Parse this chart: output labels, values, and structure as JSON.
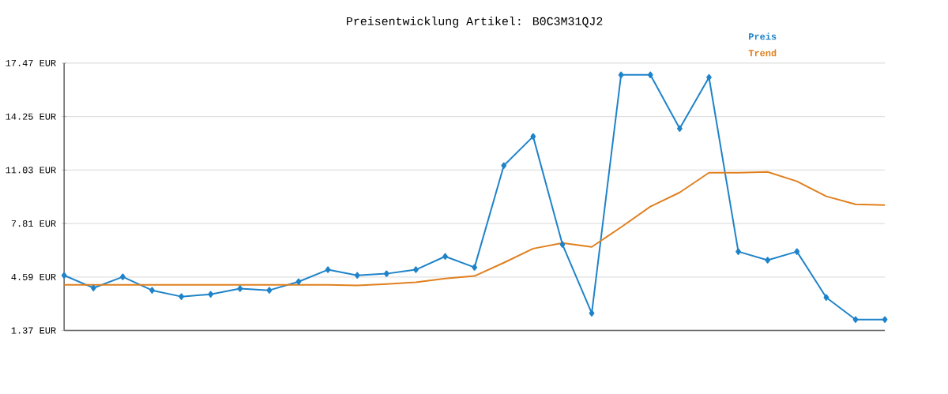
{
  "chart_data": {
    "type": "line",
    "title": "Preisentwicklung Artikel: B0C3M31QJ2",
    "categories": [
      null,
      null,
      null,
      null,
      null,
      null,
      null,
      null,
      null,
      null,
      null,
      null,
      null,
      null,
      null,
      null,
      null,
      null,
      null,
      null,
      null,
      null,
      null,
      null,
      null,
      null,
      null,
      null,
      null
    ],
    "series": [
      {
        "name": "Preis",
        "color": "#1f83c9",
        "marker": "diamond",
        "values": [
          4.69,
          3.93,
          4.6,
          3.79,
          3.41,
          3.55,
          3.89,
          3.79,
          4.31,
          5.03,
          4.69,
          4.79,
          5.03,
          5.83,
          5.17,
          11.3,
          13.05,
          6.55,
          2.41,
          16.76,
          16.76,
          13.53,
          16.61,
          6.12,
          5.6,
          6.12,
          3.36,
          2.03,
          2.03
        ]
      },
      {
        "name": "Trend",
        "color": "#e0801f",
        "marker": "none",
        "values": [
          4.12,
          4.12,
          4.12,
          4.12,
          4.12,
          4.12,
          4.12,
          4.12,
          4.12,
          4.12,
          4.08,
          4.17,
          4.27,
          4.5,
          4.65,
          5.45,
          6.3,
          6.64,
          6.4,
          7.59,
          8.83,
          9.68,
          10.87,
          10.87,
          10.92,
          10.35,
          9.45,
          8.97,
          8.92
        ]
      }
    ],
    "ylim": [
      1.37,
      17.47
    ],
    "yticks": [
      {
        "value": 1.37,
        "label": "1.37 EUR"
      },
      {
        "value": 4.59,
        "label": "4.59 EUR"
      },
      {
        "value": 7.81,
        "label": "7.81 EUR"
      },
      {
        "value": 11.03,
        "label": "11.03 EUR"
      },
      {
        "value": 14.25,
        "label": "14.25 EUR"
      },
      {
        "value": 17.47,
        "label": "17.47 EUR"
      }
    ],
    "grid": "y",
    "legend": "top right"
  }
}
